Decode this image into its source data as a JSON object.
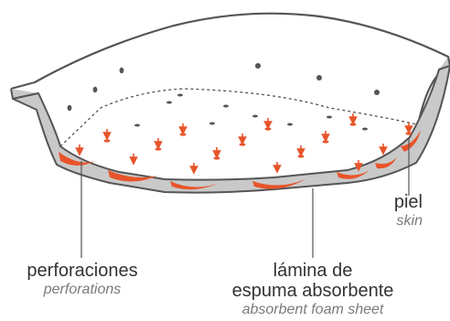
{
  "labels": {
    "skin": {
      "main": "piel",
      "sub": "skin"
    },
    "perforations": {
      "main": "perforaciones",
      "sub": "perforations"
    },
    "foam": {
      "line1": "lámina de",
      "line2": "espuma absorbente",
      "sub": "absorbent foam sheet"
    }
  },
  "colors": {
    "accent": "#e8542a",
    "shell_fill": "#c9c9c9",
    "outline": "#555555",
    "dot": "#555555"
  }
}
